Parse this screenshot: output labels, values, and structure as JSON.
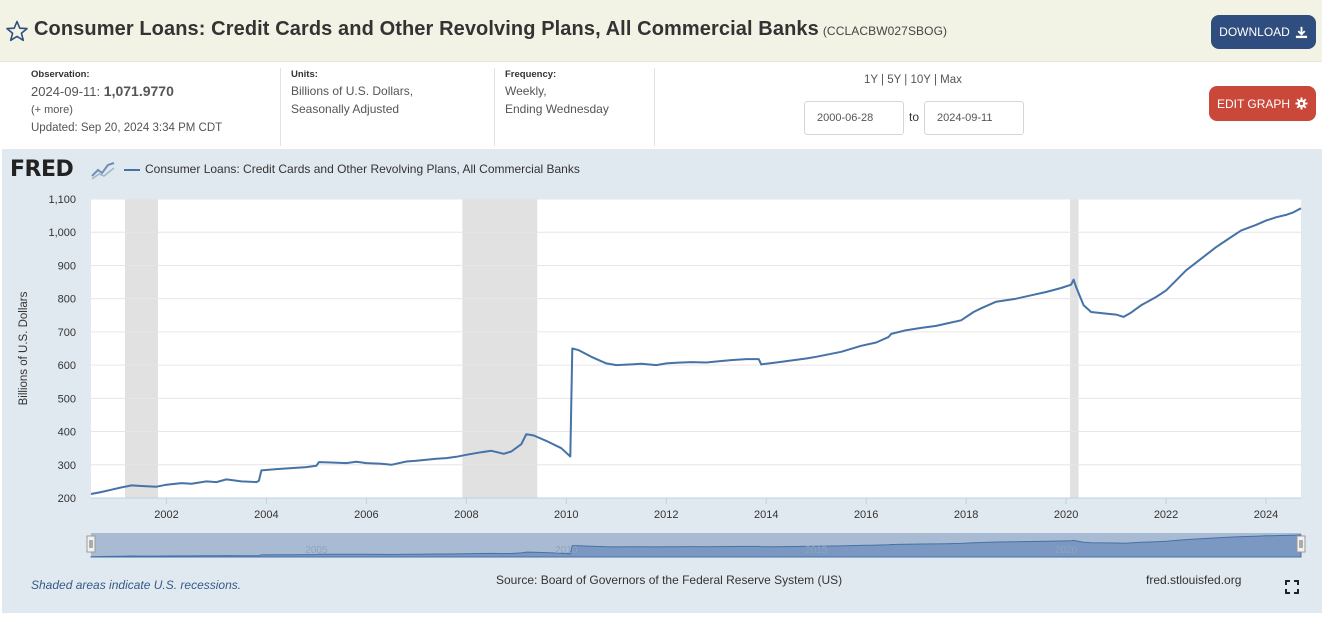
{
  "header": {
    "title": "Consumer Loans: Credit Cards and Other Revolving Plans, All Commercial Banks",
    "series_id": "(CCLACBW027SBOG)",
    "download_label": "DOWNLOAD"
  },
  "info": {
    "observation_label": "Observation:",
    "observation_date": "2024-09-11:",
    "observation_value": "1,071.9770",
    "more_label": "(+ more)",
    "updated": "Updated: Sep 20, 2024 3:34 PM CDT",
    "units_label": "Units:",
    "units_line1": "Billions of U.S. Dollars,",
    "units_line2": "Seasonally Adjusted",
    "frequency_label": "Frequency:",
    "frequency_line1": "Weekly,",
    "frequency_line2": "Ending Wednesday"
  },
  "range": {
    "links": [
      "1Y",
      "5Y",
      "10Y",
      "Max"
    ],
    "start": "2000-06-28",
    "to_label": "to",
    "end": "2024-09-11"
  },
  "edit_label": "EDIT GRAPH",
  "graph": {
    "logo": "FRED",
    "legend": "Consumer Loans: Credit Cards and Other Revolving Plans, All Commercial Banks",
    "recession_note": "Shaded areas indicate U.S. recessions.",
    "source": "Source: Board of Governors of the Federal Reserve System (US)",
    "site": "fred.stlouisfed.org"
  },
  "colors": {
    "line": "#4572a7",
    "recession": "#e1e1e1",
    "panel": "#e1e9f0",
    "download_btn": "#2f4e7f",
    "edit_btn": "#c9483a"
  },
  "chart_data": {
    "type": "line",
    "ylabel": "Billions of U.S. Dollars",
    "xlim": [
      2000.49,
      2024.7
    ],
    "ylim": [
      200,
      1100
    ],
    "yticks": [
      200,
      300,
      400,
      500,
      600,
      700,
      800,
      900,
      1000,
      1100
    ],
    "ytick_labels": [
      "200",
      "300",
      "400",
      "500",
      "600",
      "700",
      "800",
      "900",
      "1,000",
      "1,100"
    ],
    "xticks": [
      2002,
      2004,
      2006,
      2008,
      2010,
      2012,
      2014,
      2016,
      2018,
      2020,
      2022,
      2024
    ],
    "recessions": [
      [
        2001.17,
        2001.83
      ],
      [
        2007.92,
        2009.42
      ],
      [
        2020.08,
        2020.25
      ]
    ],
    "navigator_ticks": [
      "2005",
      "2010",
      "2015",
      "2020"
    ],
    "series": [
      {
        "name": "Consumer Loans: Credit Cards and Other Revolving Plans, All Commercial Banks",
        "x": [
          2000.49,
          2000.7,
          2000.9,
          2001.1,
          2001.3,
          2001.5,
          2001.8,
          2002.0,
          2002.3,
          2002.5,
          2002.8,
          2003.0,
          2003.2,
          2003.5,
          2003.8,
          2003.85,
          2003.9,
          2004.2,
          2004.5,
          2004.8,
          2005.0,
          2005.05,
          2005.3,
          2005.6,
          2005.8,
          2006.0,
          2006.3,
          2006.5,
          2006.8,
          2007.0,
          2007.2,
          2007.4,
          2007.6,
          2007.8,
          2008.0,
          2008.3,
          2008.5,
          2008.75,
          2008.9,
          2009.1,
          2009.2,
          2009.35,
          2009.6,
          2009.9,
          2010.08,
          2010.12,
          2010.25,
          2010.5,
          2010.8,
          2011.0,
          2011.3,
          2011.5,
          2011.8,
          2012.0,
          2012.2,
          2012.5,
          2012.8,
          2013.0,
          2013.3,
          2013.6,
          2013.85,
          2013.9,
          2014.2,
          2014.5,
          2014.8,
          2015.0,
          2015.5,
          2015.9,
          2016.2,
          2016.45,
          2016.5,
          2016.8,
          2017.1,
          2017.4,
          2017.6,
          2017.9,
          2018.15,
          2018.3,
          2018.6,
          2019.0,
          2019.3,
          2019.6,
          2019.9,
          2020.1,
          2020.15,
          2020.2,
          2020.35,
          2020.5,
          2020.8,
          2021.0,
          2021.15,
          2021.3,
          2021.5,
          2021.8,
          2022.0,
          2022.2,
          2022.4,
          2022.7,
          2023.0,
          2023.2,
          2023.5,
          2023.8,
          2024.0,
          2024.2,
          2024.4,
          2024.55,
          2024.7
        ],
        "y": [
          212,
          218,
          225,
          232,
          238,
          236,
          234,
          240,
          245,
          243,
          250,
          248,
          256,
          250,
          248,
          252,
          283,
          287,
          290,
          293,
          297,
          308,
          307,
          305,
          309,
          305,
          303,
          300,
          310,
          312,
          315,
          318,
          320,
          324,
          330,
          338,
          342,
          333,
          340,
          362,
          392,
          388,
          372,
          350,
          325,
          650,
          645,
          625,
          605,
          600,
          602,
          604,
          600,
          605,
          607,
          609,
          608,
          611,
          615,
          618,
          618,
          602,
          608,
          614,
          620,
          625,
          640,
          658,
          668,
          685,
          694,
          705,
          712,
          718,
          725,
          735,
          760,
          771,
          791,
          800,
          810,
          820,
          832,
          842,
          857,
          835,
          780,
          760,
          755,
          752,
          745,
          758,
          780,
          805,
          825,
          855,
          885,
          920,
          955,
          975,
          1005,
          1022,
          1035,
          1045,
          1052,
          1060,
          1072
        ]
      }
    ]
  }
}
